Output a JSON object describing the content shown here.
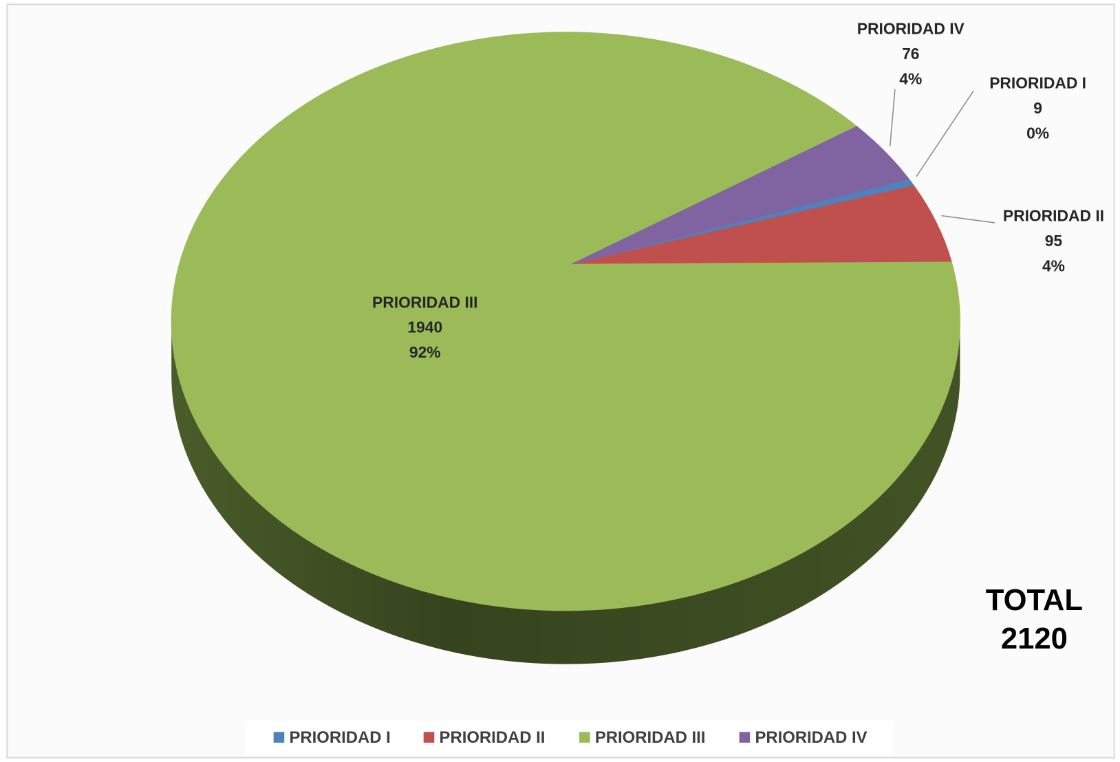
{
  "chart_data": {
    "type": "pie3d",
    "categories": [
      "PRIORIDAD I",
      "PRIORIDAD II",
      "PRIORIDAD III",
      "PRIORIDAD IV"
    ],
    "values": [
      9,
      95,
      1940,
      76
    ],
    "percent_labels": [
      "0%",
      "4%",
      "92%",
      "4%"
    ],
    "colors": [
      "#4f81bd",
      "#c0504d",
      "#9bbb59",
      "#8064a2"
    ],
    "side_colors": [
      "#2f4d73",
      "#7a2e2c",
      "#4d612b",
      "#4c3b63"
    ],
    "legend": "bottom",
    "total_label": "TOTAL",
    "total": 2120
  }
}
